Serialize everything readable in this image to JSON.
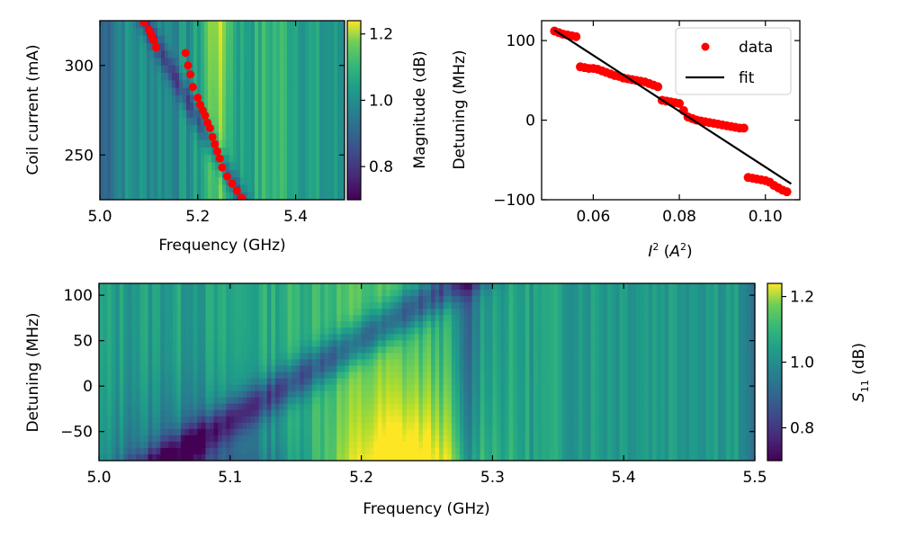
{
  "chart_data": [
    {
      "type": "heatmap",
      "xlabel": "Frequency (GHz)",
      "ylabel": "Coil current (mA)",
      "xlim": [
        5.0,
        5.5
      ],
      "ylim": [
        225,
        325
      ],
      "xticks": [
        "5.0",
        "5.2",
        "5.4"
      ],
      "yticks": [
        "250",
        "300"
      ],
      "colorbar": {
        "label": "Magnitude (dB)",
        "range": [
          0.7,
          1.24
        ],
        "ticks": [
          "0.8",
          "1.0",
          "1.2"
        ],
        "colormap": "viridis"
      },
      "overlay_points": {
        "color": "#ff0000",
        "x": [
          5.09,
          5.1,
          5.105,
          5.11,
          5.115,
          5.175,
          5.18,
          5.185,
          5.19,
          5.2,
          5.205,
          5.21,
          5.215,
          5.22,
          5.225,
          5.23,
          5.235,
          5.24,
          5.245,
          5.25,
          5.26,
          5.27,
          5.28,
          5.29
        ],
        "y": [
          324,
          320,
          317,
          314,
          310,
          307,
          300,
          295,
          288,
          282,
          278,
          275,
          272,
          268,
          265,
          260,
          256,
          252,
          248,
          243,
          238,
          234,
          230,
          226
        ]
      }
    },
    {
      "type": "scatter",
      "xlabel": "I² (A²)",
      "ylabel": "Detuning (MHz)",
      "xlim": [
        0.048,
        0.108
      ],
      "ylim": [
        -100,
        125
      ],
      "xticks": [
        "0.06",
        "0.08",
        "0.10"
      ],
      "yticks": [
        "100",
        "0",
        "−100"
      ],
      "legend": "top-right",
      "series": [
        {
          "name": "data",
          "color": "#ff0000",
          "x": [
            0.051,
            0.052,
            0.053,
            0.054,
            0.055,
            0.056,
            0.057,
            0.058,
            0.059,
            0.06,
            0.061,
            0.062,
            0.063,
            0.064,
            0.065,
            0.066,
            0.067,
            0.068,
            0.069,
            0.07,
            0.071,
            0.072,
            0.073,
            0.074,
            0.075,
            0.076,
            0.077,
            0.078,
            0.079,
            0.08,
            0.081,
            0.082,
            0.083,
            0.084,
            0.085,
            0.086,
            0.087,
            0.088,
            0.089,
            0.09,
            0.091,
            0.092,
            0.093,
            0.094,
            0.095,
            0.096,
            0.097,
            0.098,
            0.099,
            0.1,
            0.101,
            0.102,
            0.103,
            0.104,
            0.105
          ],
          "y": [
            112,
            110,
            108,
            107,
            106,
            105,
            67,
            66,
            65,
            65,
            64,
            62,
            60,
            58,
            56,
            55,
            53,
            52,
            51,
            50,
            49,
            48,
            46,
            44,
            42,
            25,
            24,
            23,
            22,
            21,
            12,
            4,
            2,
            0,
            -1,
            -2,
            -3,
            -4,
            -5,
            -6,
            -7,
            -8,
            -9,
            -10,
            -10,
            -72,
            -73,
            -74,
            -75,
            -76,
            -78,
            -82,
            -85,
            -88,
            -90
          ]
        },
        {
          "name": "fit",
          "color": "#000000",
          "x": [
            0.051,
            0.106
          ],
          "y": [
            113,
            -80
          ]
        }
      ]
    },
    {
      "type": "heatmap",
      "xlabel": "Frequency (GHz)",
      "ylabel": "Detuning (MHz)",
      "xlim": [
        5.0,
        5.5
      ],
      "ylim": [
        -82,
        113
      ],
      "xticks": [
        "5.0",
        "5.1",
        "5.2",
        "5.3",
        "5.4",
        "5.5"
      ],
      "yticks": [
        "100",
        "50",
        "0",
        "−50"
      ],
      "colorbar": {
        "label": "S₁₁ (dB)",
        "range": [
          0.7,
          1.24
        ],
        "ticks": [
          "0.8",
          "1.0",
          "1.2"
        ],
        "colormap": "viridis"
      }
    }
  ]
}
